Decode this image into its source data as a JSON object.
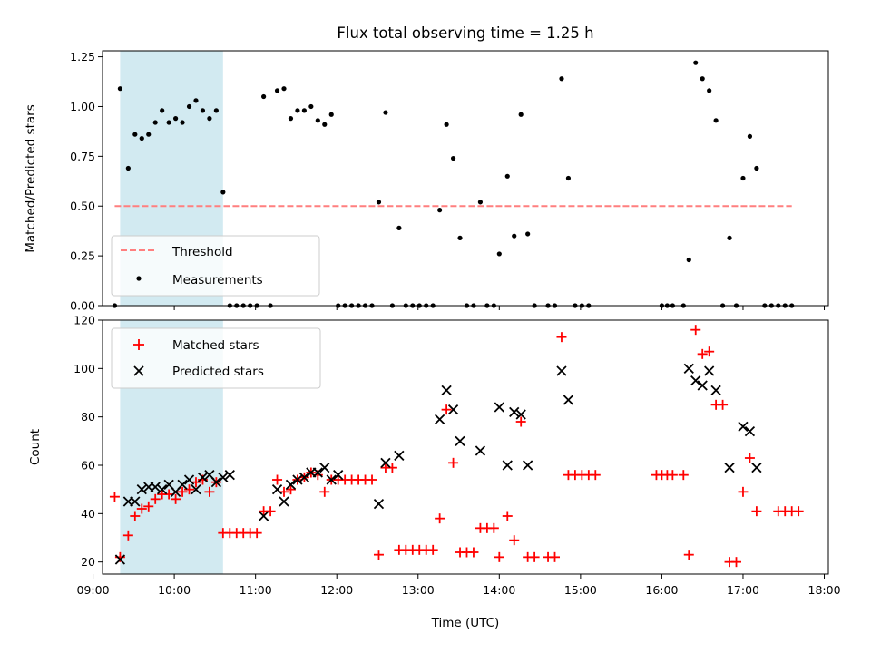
{
  "chart_data": [
    {
      "type": "scatter",
      "title": "Flux total observing time = 1.25 h",
      "xlabel": "",
      "ylabel": "Matched/Predicted stars",
      "xlim": [
        "09:07",
        "18:03"
      ],
      "ylim": [
        0,
        1.28
      ],
      "yticks": [
        0.0,
        0.25,
        0.5,
        0.75,
        1.0,
        1.25
      ],
      "ytick_labels": [
        "0.00",
        "0.25",
        "0.50",
        "0.75",
        "1.00",
        "1.25"
      ],
      "highlight_band": {
        "start": "09:20",
        "end": "10:36",
        "color": "#add8e6"
      },
      "threshold": {
        "name": "Threshold",
        "value": 0.5,
        "x_start": "09:16",
        "x_end": "17:36",
        "color": "#ff7f7f",
        "style": "dashed"
      },
      "series": [
        {
          "name": "Measurements",
          "color": "#000000",
          "marker": "dot",
          "points": [
            [
              "09:16",
              0.0
            ],
            [
              "09:20",
              1.09
            ],
            [
              "09:26",
              0.69
            ],
            [
              "09:31",
              0.86
            ],
            [
              "09:36",
              0.84
            ],
            [
              "09:41",
              0.86
            ],
            [
              "09:46",
              0.92
            ],
            [
              "09:51",
              0.98
            ],
            [
              "09:56",
              0.92
            ],
            [
              "10:01",
              0.94
            ],
            [
              "10:06",
              0.92
            ],
            [
              "10:11",
              1.0
            ],
            [
              "10:16",
              1.03
            ],
            [
              "10:21",
              0.98
            ],
            [
              "10:26",
              0.94
            ],
            [
              "10:31",
              0.98
            ],
            [
              "10:36",
              0.57
            ],
            [
              "10:41",
              0.0
            ],
            [
              "10:46",
              0.0
            ],
            [
              "10:51",
              0.0
            ],
            [
              "10:56",
              0.0
            ],
            [
              "11:01",
              0.0
            ],
            [
              "11:06",
              1.05
            ],
            [
              "11:11",
              0.0
            ],
            [
              "11:16",
              1.08
            ],
            [
              "11:21",
              1.09
            ],
            [
              "11:26",
              0.94
            ],
            [
              "11:31",
              0.98
            ],
            [
              "11:36",
              0.98
            ],
            [
              "11:41",
              1.0
            ],
            [
              "11:46",
              0.93
            ],
            [
              "11:51",
              0.91
            ],
            [
              "11:56",
              0.96
            ],
            [
              "12:01",
              0.0
            ],
            [
              "12:06",
              0.0
            ],
            [
              "12:11",
              0.0
            ],
            [
              "12:16",
              0.0
            ],
            [
              "12:21",
              0.0
            ],
            [
              "12:26",
              0.0
            ],
            [
              "12:31",
              0.52
            ],
            [
              "12:36",
              0.97
            ],
            [
              "12:41",
              0.0
            ],
            [
              "12:46",
              0.39
            ],
            [
              "12:51",
              0.0
            ],
            [
              "12:56",
              0.0
            ],
            [
              "13:01",
              0.0
            ],
            [
              "13:06",
              0.0
            ],
            [
              "13:11",
              0.0
            ],
            [
              "13:16",
              0.48
            ],
            [
              "13:21",
              0.91
            ],
            [
              "13:26",
              0.74
            ],
            [
              "13:31",
              0.34
            ],
            [
              "13:36",
              0.0
            ],
            [
              "13:41",
              0.0
            ],
            [
              "13:46",
              0.52
            ],
            [
              "13:51",
              0.0
            ],
            [
              "13:56",
              0.0
            ],
            [
              "14:00",
              0.26
            ],
            [
              "14:06",
              0.65
            ],
            [
              "14:11",
              0.35
            ],
            [
              "14:16",
              0.96
            ],
            [
              "14:21",
              0.36
            ],
            [
              "14:26",
              0.0
            ],
            [
              "14:36",
              0.0
            ],
            [
              "14:41",
              0.0
            ],
            [
              "14:46",
              1.14
            ],
            [
              "14:51",
              0.64
            ],
            [
              "14:56",
              0.0
            ],
            [
              "15:01",
              0.0
            ],
            [
              "15:06",
              0.0
            ],
            [
              "16:00",
              0.0
            ],
            [
              "16:04",
              0.0
            ],
            [
              "16:08",
              0.0
            ],
            [
              "16:16",
              0.0
            ],
            [
              "16:20",
              0.23
            ],
            [
              "16:25",
              1.22
            ],
            [
              "16:30",
              1.14
            ],
            [
              "16:35",
              1.08
            ],
            [
              "16:40",
              0.93
            ],
            [
              "16:45",
              0.0
            ],
            [
              "16:50",
              0.34
            ],
            [
              "16:55",
              0.0
            ],
            [
              "17:00",
              0.64
            ],
            [
              "17:05",
              0.85
            ],
            [
              "17:10",
              0.69
            ],
            [
              "17:16",
              0.0
            ],
            [
              "17:21",
              0.0
            ],
            [
              "17:26",
              0.0
            ],
            [
              "17:31",
              0.0
            ],
            [
              "17:36",
              0.0
            ]
          ]
        }
      ],
      "legend": {
        "location": "lower left",
        "entries": [
          "Threshold",
          "Measurements"
        ]
      }
    },
    {
      "type": "scatter",
      "title": "",
      "xlabel": "Time (UTC)",
      "ylabel": "Count",
      "xlim": [
        "09:07",
        "18:03"
      ],
      "ylim": [
        15,
        120
      ],
      "yticks": [
        20,
        40,
        60,
        80,
        100,
        120
      ],
      "ytick_labels": [
        "20",
        "40",
        "60",
        "80",
        "100",
        "120"
      ],
      "xticks": [
        "09:00",
        "10:00",
        "11:00",
        "12:00",
        "13:00",
        "14:00",
        "15:00",
        "16:00",
        "17:00",
        "18:00"
      ],
      "highlight_band": {
        "start": "09:20",
        "end": "10:36",
        "color": "#add8e6"
      },
      "series": [
        {
          "name": "Matched stars",
          "color": "#ff0000",
          "marker": "plus",
          "points": [
            [
              "09:16",
              47
            ],
            [
              "09:20",
              22
            ],
            [
              "09:26",
              31
            ],
            [
              "09:31",
              39
            ],
            [
              "09:36",
              42
            ],
            [
              "09:41",
              43
            ],
            [
              "09:46",
              46
            ],
            [
              "09:51",
              48
            ],
            [
              "09:56",
              48
            ],
            [
              "10:01",
              46
            ],
            [
              "10:06",
              49
            ],
            [
              "10:11",
              50
            ],
            [
              "10:16",
              53
            ],
            [
              "10:21",
              54
            ],
            [
              "10:26",
              49
            ],
            [
              "10:31",
              53
            ],
            [
              "10:36",
              32
            ],
            [
              "10:41",
              32
            ],
            [
              "10:46",
              32
            ],
            [
              "10:51",
              32
            ],
            [
              "10:56",
              32
            ],
            [
              "11:01",
              32
            ],
            [
              "11:06",
              41
            ],
            [
              "11:11",
              41
            ],
            [
              "11:16",
              54
            ],
            [
              "11:21",
              49
            ],
            [
              "11:26",
              50
            ],
            [
              "11:31",
              54
            ],
            [
              "11:36",
              55
            ],
            [
              "11:41",
              57
            ],
            [
              "11:46",
              56
            ],
            [
              "11:51",
              49
            ],
            [
              "11:56",
              54
            ],
            [
              "12:01",
              54
            ],
            [
              "12:06",
              54
            ],
            [
              "12:11",
              54
            ],
            [
              "12:16",
              54
            ],
            [
              "12:21",
              54
            ],
            [
              "12:26",
              54
            ],
            [
              "12:31",
              23
            ],
            [
              "12:36",
              59
            ],
            [
              "12:41",
              59
            ],
            [
              "12:46",
              25
            ],
            [
              "12:51",
              25
            ],
            [
              "12:56",
              25
            ],
            [
              "13:01",
              25
            ],
            [
              "13:06",
              25
            ],
            [
              "13:11",
              25
            ],
            [
              "13:16",
              38
            ],
            [
              "13:21",
              83
            ],
            [
              "13:26",
              61
            ],
            [
              "13:31",
              24
            ],
            [
              "13:36",
              24
            ],
            [
              "13:41",
              24
            ],
            [
              "13:46",
              34
            ],
            [
              "13:51",
              34
            ],
            [
              "13:56",
              34
            ],
            [
              "14:00",
              22
            ],
            [
              "14:06",
              39
            ],
            [
              "14:11",
              29
            ],
            [
              "14:16",
              78
            ],
            [
              "14:21",
              22
            ],
            [
              "14:26",
              22
            ],
            [
              "14:36",
              22
            ],
            [
              "14:41",
              22
            ],
            [
              "14:46",
              113
            ],
            [
              "14:51",
              56
            ],
            [
              "14:56",
              56
            ],
            [
              "15:01",
              56
            ],
            [
              "15:06",
              56
            ],
            [
              "15:11",
              56
            ],
            [
              "15:56",
              56
            ],
            [
              "16:00",
              56
            ],
            [
              "16:04",
              56
            ],
            [
              "16:08",
              56
            ],
            [
              "16:16",
              56
            ],
            [
              "16:20",
              23
            ],
            [
              "16:25",
              116
            ],
            [
              "16:30",
              106
            ],
            [
              "16:35",
              107
            ],
            [
              "16:40",
              85
            ],
            [
              "16:45",
              85
            ],
            [
              "16:50",
              20
            ],
            [
              "16:55",
              20
            ],
            [
              "17:00",
              49
            ],
            [
              "17:05",
              63
            ],
            [
              "17:10",
              41
            ],
            [
              "17:26",
              41
            ],
            [
              "17:31",
              41
            ],
            [
              "17:36",
              41
            ],
            [
              "17:41",
              41
            ]
          ]
        },
        {
          "name": "Predicted stars",
          "color": "#000000",
          "marker": "x",
          "points": [
            [
              "09:20",
              21
            ],
            [
              "09:26",
              45
            ],
            [
              "09:31",
              45
            ],
            [
              "09:36",
              50
            ],
            [
              "09:41",
              51
            ],
            [
              "09:46",
              51
            ],
            [
              "09:51",
              50
            ],
            [
              "09:56",
              52
            ],
            [
              "10:01",
              49
            ],
            [
              "10:06",
              52
            ],
            [
              "10:11",
              54
            ],
            [
              "10:16",
              50
            ],
            [
              "10:21",
              55
            ],
            [
              "10:26",
              56
            ],
            [
              "10:31",
              53
            ],
            [
              "10:36",
              55
            ],
            [
              "10:41",
              56
            ],
            [
              "11:06",
              39
            ],
            [
              "11:16",
              50
            ],
            [
              "11:21",
              45
            ],
            [
              "11:26",
              52
            ],
            [
              "11:31",
              54
            ],
            [
              "11:36",
              55
            ],
            [
              "11:41",
              57
            ],
            [
              "11:46",
              57
            ],
            [
              "11:51",
              59
            ],
            [
              "11:56",
              54
            ],
            [
              "12:01",
              56
            ],
            [
              "12:31",
              44
            ],
            [
              "12:36",
              61
            ],
            [
              "12:46",
              64
            ],
            [
              "13:16",
              79
            ],
            [
              "13:21",
              91
            ],
            [
              "13:26",
              83
            ],
            [
              "13:31",
              70
            ],
            [
              "13:46",
              66
            ],
            [
              "14:00",
              84
            ],
            [
              "14:06",
              60
            ],
            [
              "14:11",
              82
            ],
            [
              "14:16",
              81
            ],
            [
              "14:21",
              60
            ],
            [
              "14:46",
              99
            ],
            [
              "14:51",
              87
            ],
            [
              "16:20",
              100
            ],
            [
              "16:25",
              95
            ],
            [
              "16:30",
              93
            ],
            [
              "16:35",
              99
            ],
            [
              "16:40",
              91
            ],
            [
              "16:50",
              59
            ],
            [
              "17:00",
              76
            ],
            [
              "17:05",
              74
            ],
            [
              "17:10",
              59
            ]
          ]
        }
      ],
      "legend": {
        "location": "upper left",
        "entries": [
          "Matched stars",
          "Predicted stars"
        ]
      }
    }
  ]
}
